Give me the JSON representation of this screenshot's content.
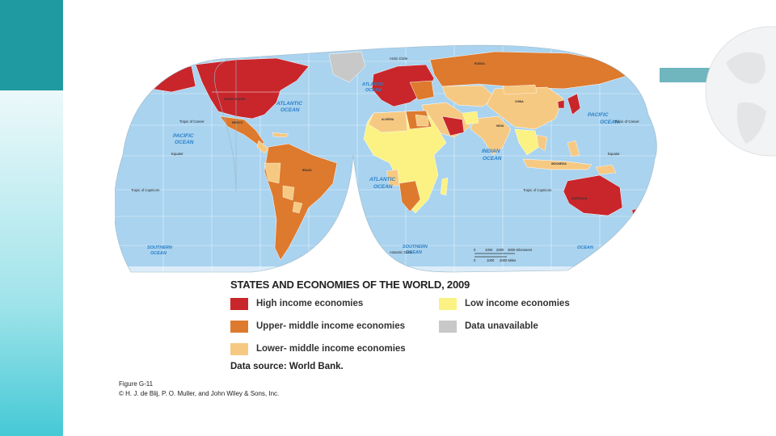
{
  "map": {
    "title": "STATES AND ECONOMIES OF THE WORLD, 2009",
    "data_source": "Data source: World Bank.",
    "figure_label": "Figure G-11",
    "copyright": "© H. J. de Blij, P. O. Muller, and John Wiley & Sons, Inc.",
    "ocean_color": "#a9d3ef",
    "legend": [
      {
        "label": "High income economies",
        "color": "#c8262b"
      },
      {
        "label": "Upper- middle income economies",
        "color": "#dd7a2e"
      },
      {
        "label": "Lower- middle income economies",
        "color": "#f6c982"
      },
      {
        "label": "Low income economies",
        "color": "#fbf283"
      },
      {
        "label": "Data unavailable",
        "color": "#c8c8c8"
      }
    ],
    "ocean_labels": {
      "atlantic_north": [
        "ATLANTIC",
        "OCEAN"
      ],
      "atlantic_north_2": [
        "ATLANTIC",
        "OCEAN"
      ],
      "pacific_west": [
        "PACIFIC",
        "OCEAN"
      ],
      "pacific_east": [
        "PACIFIC",
        "OCEAN"
      ],
      "atlantic_south": [
        "ATLANTIC",
        "OCEAN"
      ],
      "indian": [
        "INDIAN",
        "OCEAN"
      ],
      "southern_west": [
        "SOUTHERN",
        "OCEAN"
      ],
      "southern_mid": [
        "SOUTHERN",
        "OCEAN"
      ],
      "southern_east": [
        "OCEAN"
      ]
    },
    "line_labels": {
      "arctic_circle": "Arctic Circle",
      "tropic_cancer_w": "Tropic of Cancer",
      "tropic_cancer_e": "Tropic of Cancer",
      "equator_w": "Equator",
      "equator_e": "Equator",
      "tropic_capricorn_w": "Tropic of Capricorn",
      "tropic_capricorn_e": "Tropic of Capricorn",
      "antarctic_circle": "Antarctic Circle"
    },
    "country_labels": {
      "usa": "UNITED STATES",
      "brazil": "BRAZIL",
      "russia": "RUSSIA",
      "china": "CHINA",
      "india": "INDIA",
      "australia": "AUSTRALIA",
      "indonesia": "INDONESIA",
      "mexico": "MEXICO",
      "algeria": "ALGERIA"
    },
    "scale": {
      "km": [
        "0",
        "1000",
        "2000",
        "3000 Kilometers"
      ],
      "mi": [
        "0",
        "1000",
        "2000 Miles"
      ]
    }
  }
}
